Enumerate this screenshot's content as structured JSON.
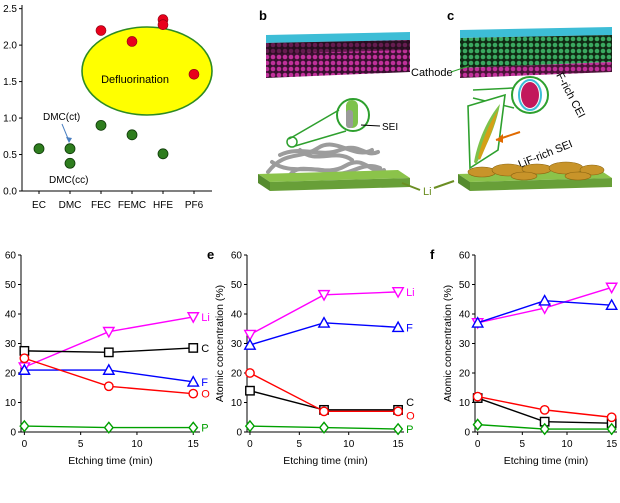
{
  "panel_labels": [
    "b",
    "c",
    "e",
    "f"
  ],
  "illustration": {
    "cathode_label": "Cathode",
    "sei_label": "SEI",
    "li_label": "Li",
    "f_rich_cei_label": "F-rich CEI",
    "lif_rich_sei_label": "LiF-rich SEI"
  },
  "colors": {
    "li": "#ff00ff",
    "c": "#000000",
    "f": "#0000ff",
    "o": "#ff0000",
    "p": "#00a000",
    "point_green": "#2e7d1e",
    "point_red": "#e8001c",
    "highlight_fill": "#ffff00",
    "highlight_edge": "#2e8b22"
  },
  "chart_data": [
    {
      "id": "a",
      "type": "scatter",
      "categories": [
        "EC",
        "DMC",
        "FEC",
        "FEMC",
        "HFE",
        "PF6"
      ],
      "y_ticks": [
        "0.0",
        "0.5",
        "1.0",
        "1.5",
        "2.0",
        "2.5"
      ],
      "ylim": [
        0,
        2.55
      ],
      "green_points": [
        {
          "x": "EC",
          "y": 0.58
        },
        {
          "x": "DMC",
          "y": 0.58
        },
        {
          "x": "DMC",
          "y": 0.38
        },
        {
          "x": "FEC",
          "y": 0.9
        },
        {
          "x": "FEMC",
          "y": 0.77
        },
        {
          "x": "HFE",
          "y": 0.51
        }
      ],
      "red_points": [
        {
          "x": "FEC",
          "y": 2.2
        },
        {
          "x": "FEMC",
          "y": 2.05
        },
        {
          "x": "HFE",
          "y": 2.35
        },
        {
          "x": "HFE",
          "y": 2.28
        },
        {
          "x": "PF6",
          "y": 1.6
        }
      ],
      "annotations": [
        "Defluorination",
        "DMC(ct)",
        "DMC(cc)"
      ]
    },
    {
      "id": "d",
      "type": "line",
      "x": [
        0,
        7.5,
        15
      ],
      "x_ticks": [
        "0",
        "5",
        "10",
        "15"
      ],
      "y_ticks": [
        "0",
        "10",
        "20",
        "30",
        "40",
        "50",
        "60"
      ],
      "xlim": [
        -0.3,
        15.6
      ],
      "ylim": [
        0,
        60
      ],
      "xlabel": "Etching time (min)",
      "ylabel": "",
      "series": [
        {
          "name": "Li",
          "key": "li",
          "marker": "tri-down",
          "values": [
            22,
            34,
            39
          ]
        },
        {
          "name": "C",
          "key": "c",
          "marker": "square",
          "values": [
            27.5,
            27,
            28.5
          ]
        },
        {
          "name": "F",
          "key": "f",
          "marker": "tri-up",
          "values": [
            21,
            21,
            17
          ]
        },
        {
          "name": "O",
          "key": "o",
          "marker": "circle",
          "values": [
            25,
            15.5,
            13
          ]
        },
        {
          "name": "P",
          "key": "p",
          "marker": "diamond",
          "values": [
            2,
            1.5,
            1.5
          ]
        }
      ]
    },
    {
      "id": "e",
      "type": "line",
      "x": [
        0,
        7.5,
        15
      ],
      "x_ticks": [
        "0",
        "5",
        "10",
        "15"
      ],
      "y_ticks": [
        "0",
        "10",
        "20",
        "30",
        "40",
        "50",
        "60"
      ],
      "xlim": [
        -0.3,
        15.6
      ],
      "ylim": [
        0,
        60
      ],
      "xlabel": "Etching time (min)",
      "ylabel": "Atomic concentration (%)",
      "series": [
        {
          "name": "Li",
          "key": "li",
          "marker": "tri-down",
          "values": [
            33,
            46.5,
            47.5
          ]
        },
        {
          "name": "F",
          "key": "f",
          "marker": "tri-up",
          "values": [
            29.5,
            37,
            35.5
          ]
        },
        {
          "name": "C",
          "key": "c",
          "marker": "square",
          "values": [
            14,
            7.5,
            7.5
          ]
        },
        {
          "name": "O",
          "key": "o",
          "marker": "circle",
          "values": [
            20,
            7,
            7
          ]
        },
        {
          "name": "P",
          "key": "p",
          "marker": "diamond",
          "values": [
            2,
            1.5,
            1
          ]
        }
      ]
    },
    {
      "id": "f",
      "type": "line",
      "x": [
        0,
        7.5,
        15
      ],
      "x_ticks": [
        "0",
        "5",
        "10",
        "15"
      ],
      "y_ticks": [
        "0",
        "10",
        "20",
        "30",
        "40",
        "50",
        "60"
      ],
      "xlim": [
        -0.3,
        15.6
      ],
      "ylim": [
        0,
        60
      ],
      "xlabel": "Etching time (min)",
      "ylabel": "Atomic concentration (%)",
      "series": [
        {
          "name": "",
          "key": "li",
          "marker": "tri-down",
          "values": [
            37,
            42,
            49
          ]
        },
        {
          "name": "",
          "key": "f",
          "marker": "tri-up",
          "values": [
            37,
            44.5,
            43
          ]
        },
        {
          "name": "",
          "key": "c",
          "marker": "square",
          "values": [
            11.5,
            3.5,
            3
          ]
        },
        {
          "name": "",
          "key": "o",
          "marker": "circle",
          "values": [
            12,
            7.5,
            5
          ]
        },
        {
          "name": "",
          "key": "p",
          "marker": "diamond",
          "values": [
            2.5,
            1,
            1
          ]
        }
      ]
    }
  ]
}
